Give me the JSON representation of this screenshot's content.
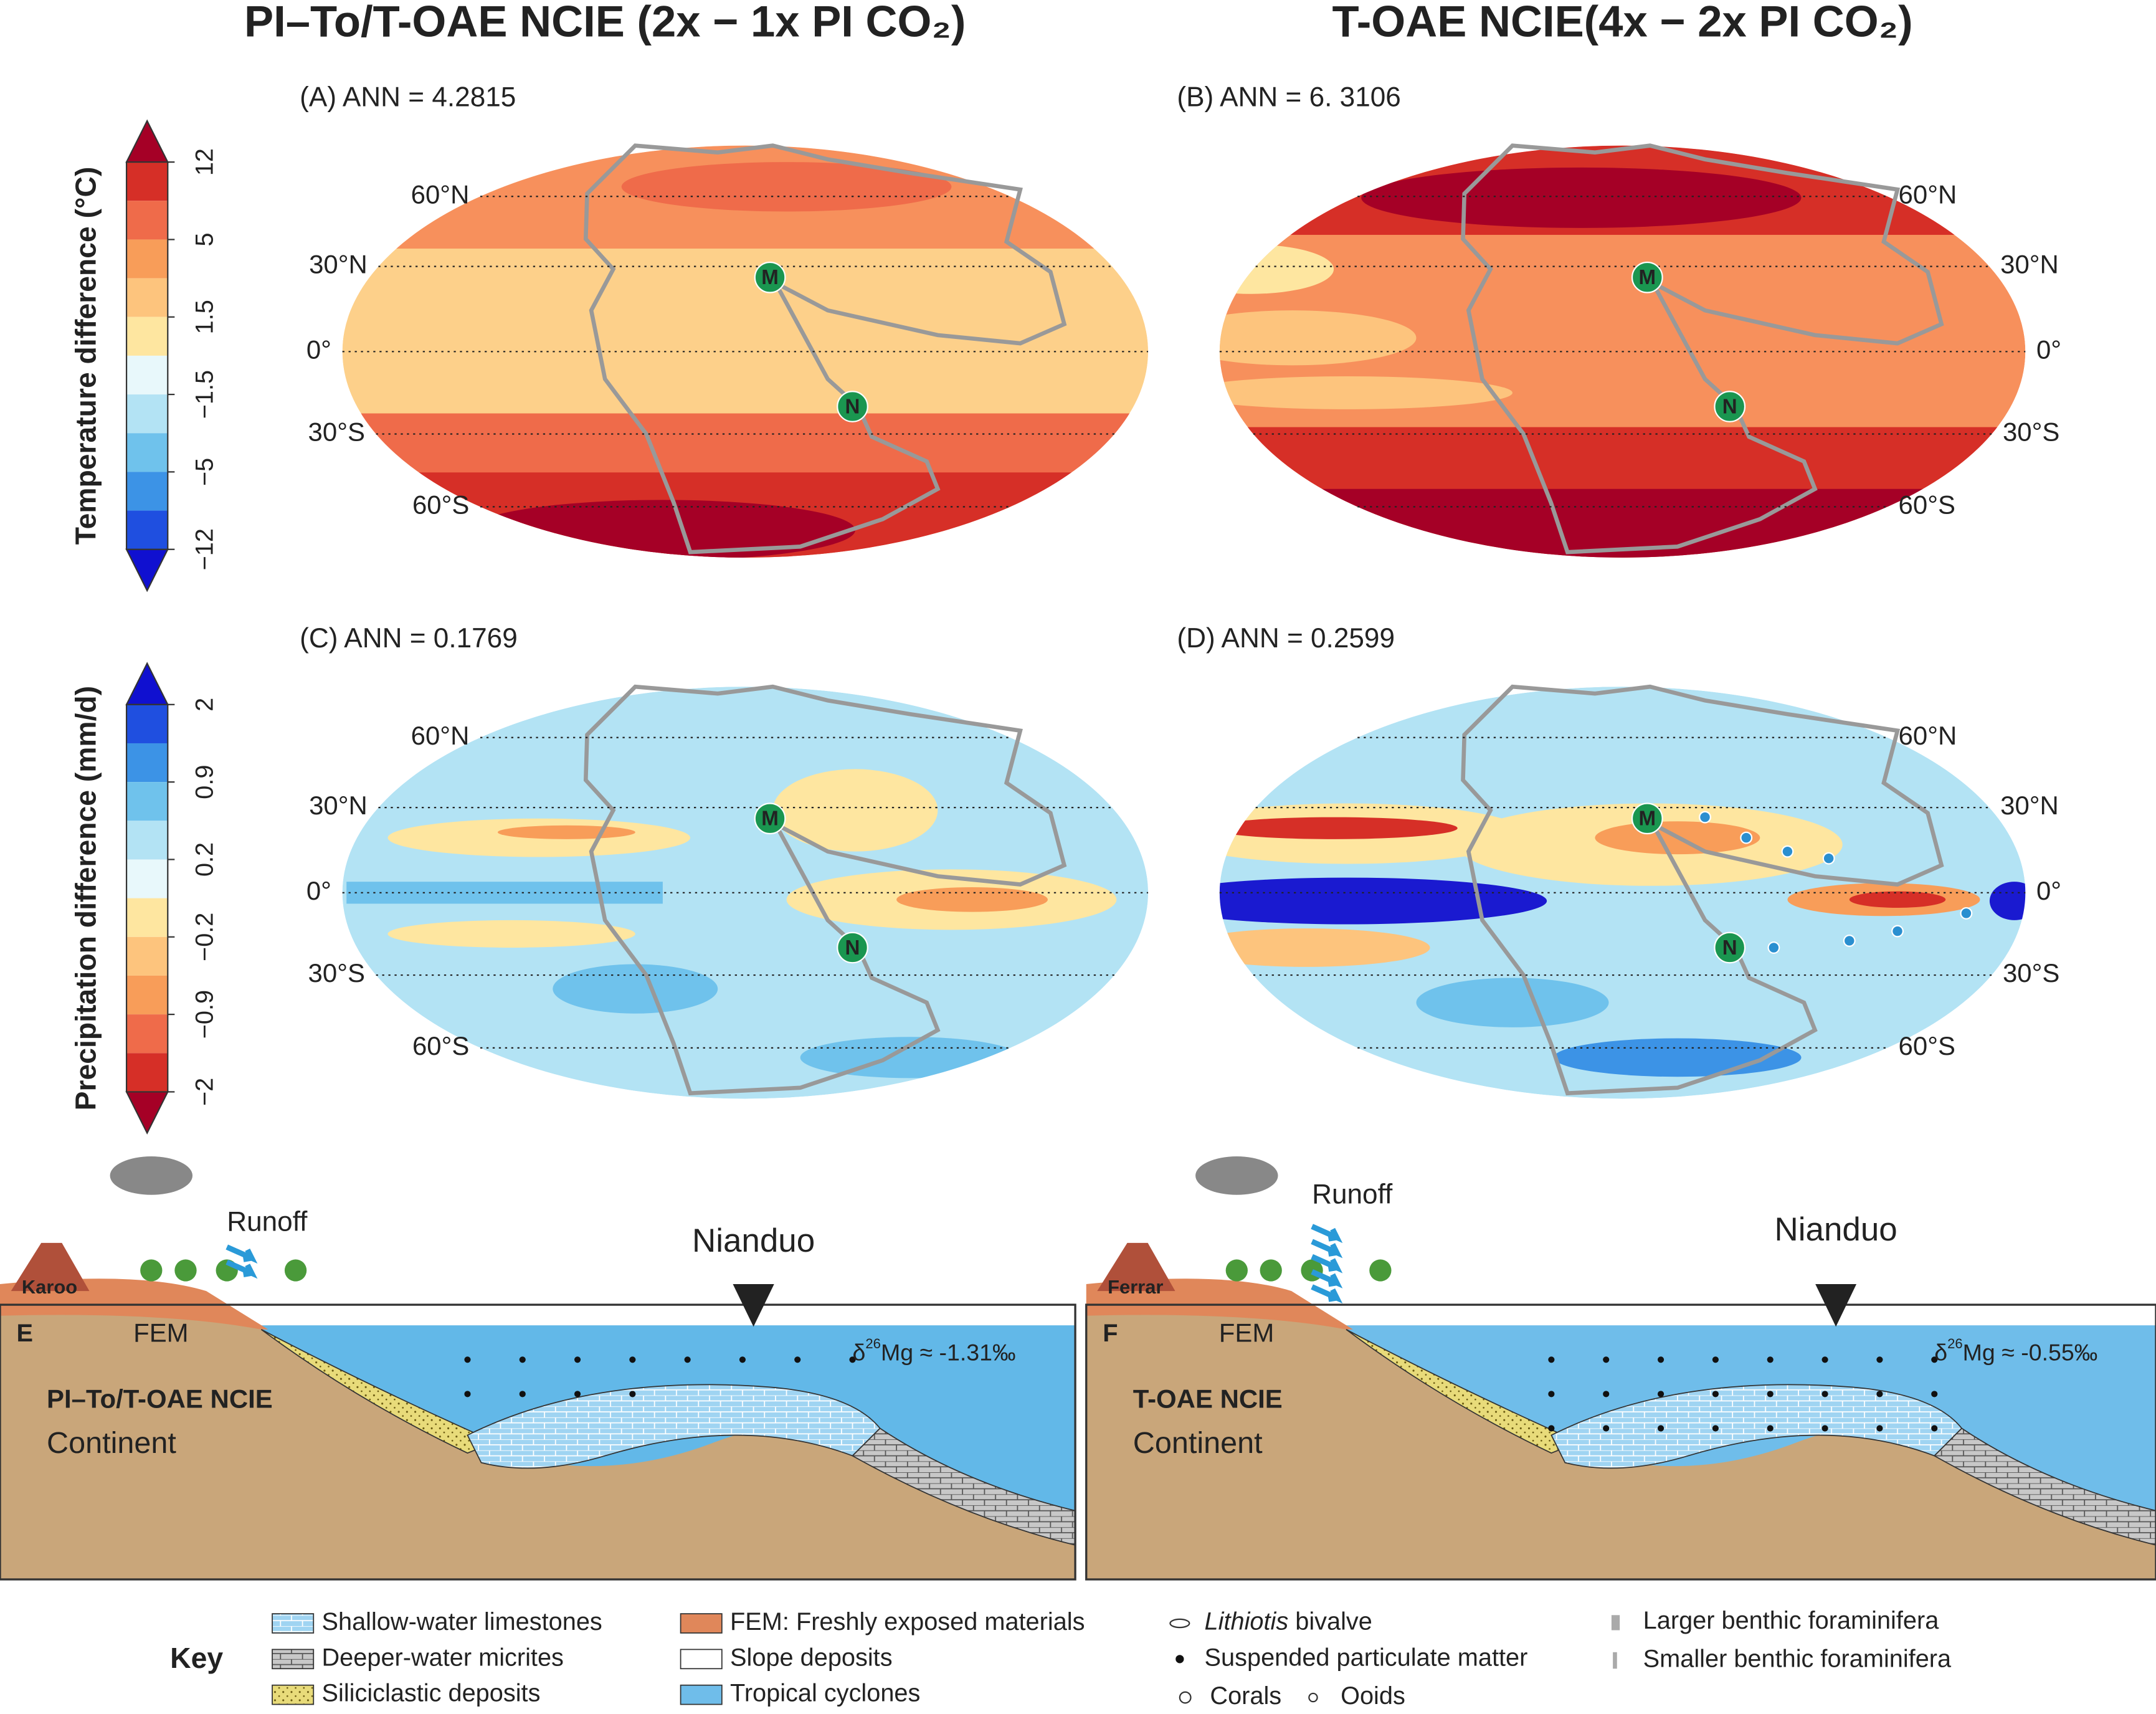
{
  "titles": {
    "left": "PI–To/T-OAE NCIE (2x − 1x PI CO₂)",
    "right": "T-OAE NCIE(4x − 2x PI CO₂)"
  },
  "colorbars": {
    "temperature": {
      "label": "Temperature difference (°C)",
      "ticks": [
        "12",
        "5",
        "1.5",
        "−1.5",
        "−5",
        "−12"
      ]
    },
    "precipitation": {
      "label": "Precipitation difference (mm/d)",
      "ticks": [
        "2",
        "0.9",
        "0.2",
        "−0.2",
        "−0.9",
        "−2"
      ]
    }
  },
  "maps": {
    "panels": [
      "(A) ANN = 4.2815",
      "(B) ANN = 6. 3106",
      "(C) ANN = 0.1769",
      "(D) ANN = 0.2599"
    ],
    "latitudes": [
      "60°N",
      "30°N",
      "0°",
      "30°S",
      "60°S"
    ],
    "markers": [
      "M",
      "N"
    ]
  },
  "sections": {
    "E": {
      "letter": "E",
      "runoff": "Runoff",
      "site": "Nianduo",
      "volcano": "Karoo",
      "fem": "FEM",
      "scenario": "PI–To/T-OAE NCIE",
      "land": "Continent",
      "delta": "δ",
      "isotope": "26",
      "mg": "Mg ≈ -1.31‰"
    },
    "F": {
      "letter": "F",
      "runoff": "Runoff",
      "site": "Nianduo",
      "volcano": "Ferrar",
      "fem": "FEM",
      "scenario": "T-OAE NCIE",
      "land": "Continent",
      "delta": "δ",
      "isotope": "26",
      "mg": "Mg ≈ -0.55‰"
    }
  },
  "key": {
    "title": "Key",
    "items": [
      "Shallow-water limestones",
      "Deeper-water micrites",
      "Siliciclastic deposits",
      "FEM: Freshly exposed materials",
      "Slope deposits",
      "Tropical cyclones"
    ],
    "lithiotis": "Lithiotis",
    "bivalve": " bivalve",
    "items2": [
      "Suspended particulate matter",
      "Corals",
      "Ooids",
      "Larger benthic foraminifera",
      "Smaller benthic foraminifera"
    ]
  }
}
